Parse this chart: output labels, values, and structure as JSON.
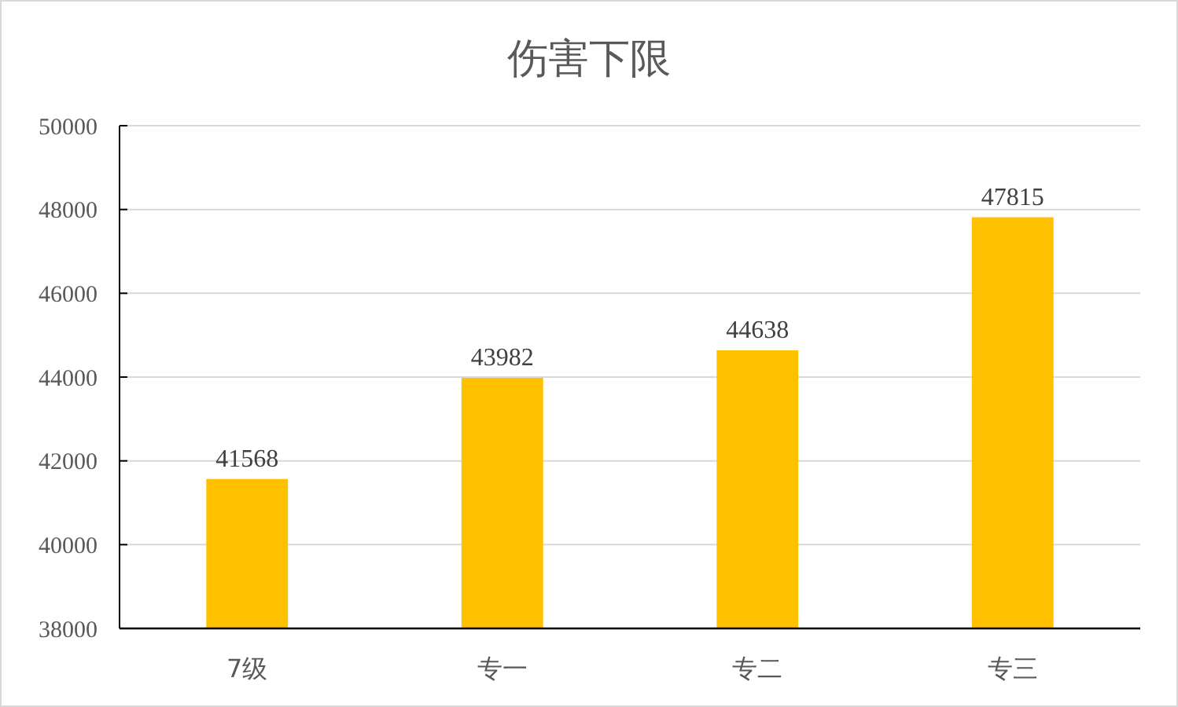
{
  "chart_data": {
    "type": "bar",
    "title": "伤害下限",
    "categories": [
      "7级",
      "专一",
      "专二",
      "专三"
    ],
    "series": [
      {
        "color": "#ffc000",
        "values": [
          41568,
          43982,
          44638,
          47815
        ]
      }
    ],
    "ylim": [
      38000,
      50000
    ],
    "yticks": [
      38000,
      40000,
      42000,
      44000,
      46000,
      48000,
      50000
    ],
    "grid": "y",
    "data_labels": true
  }
}
